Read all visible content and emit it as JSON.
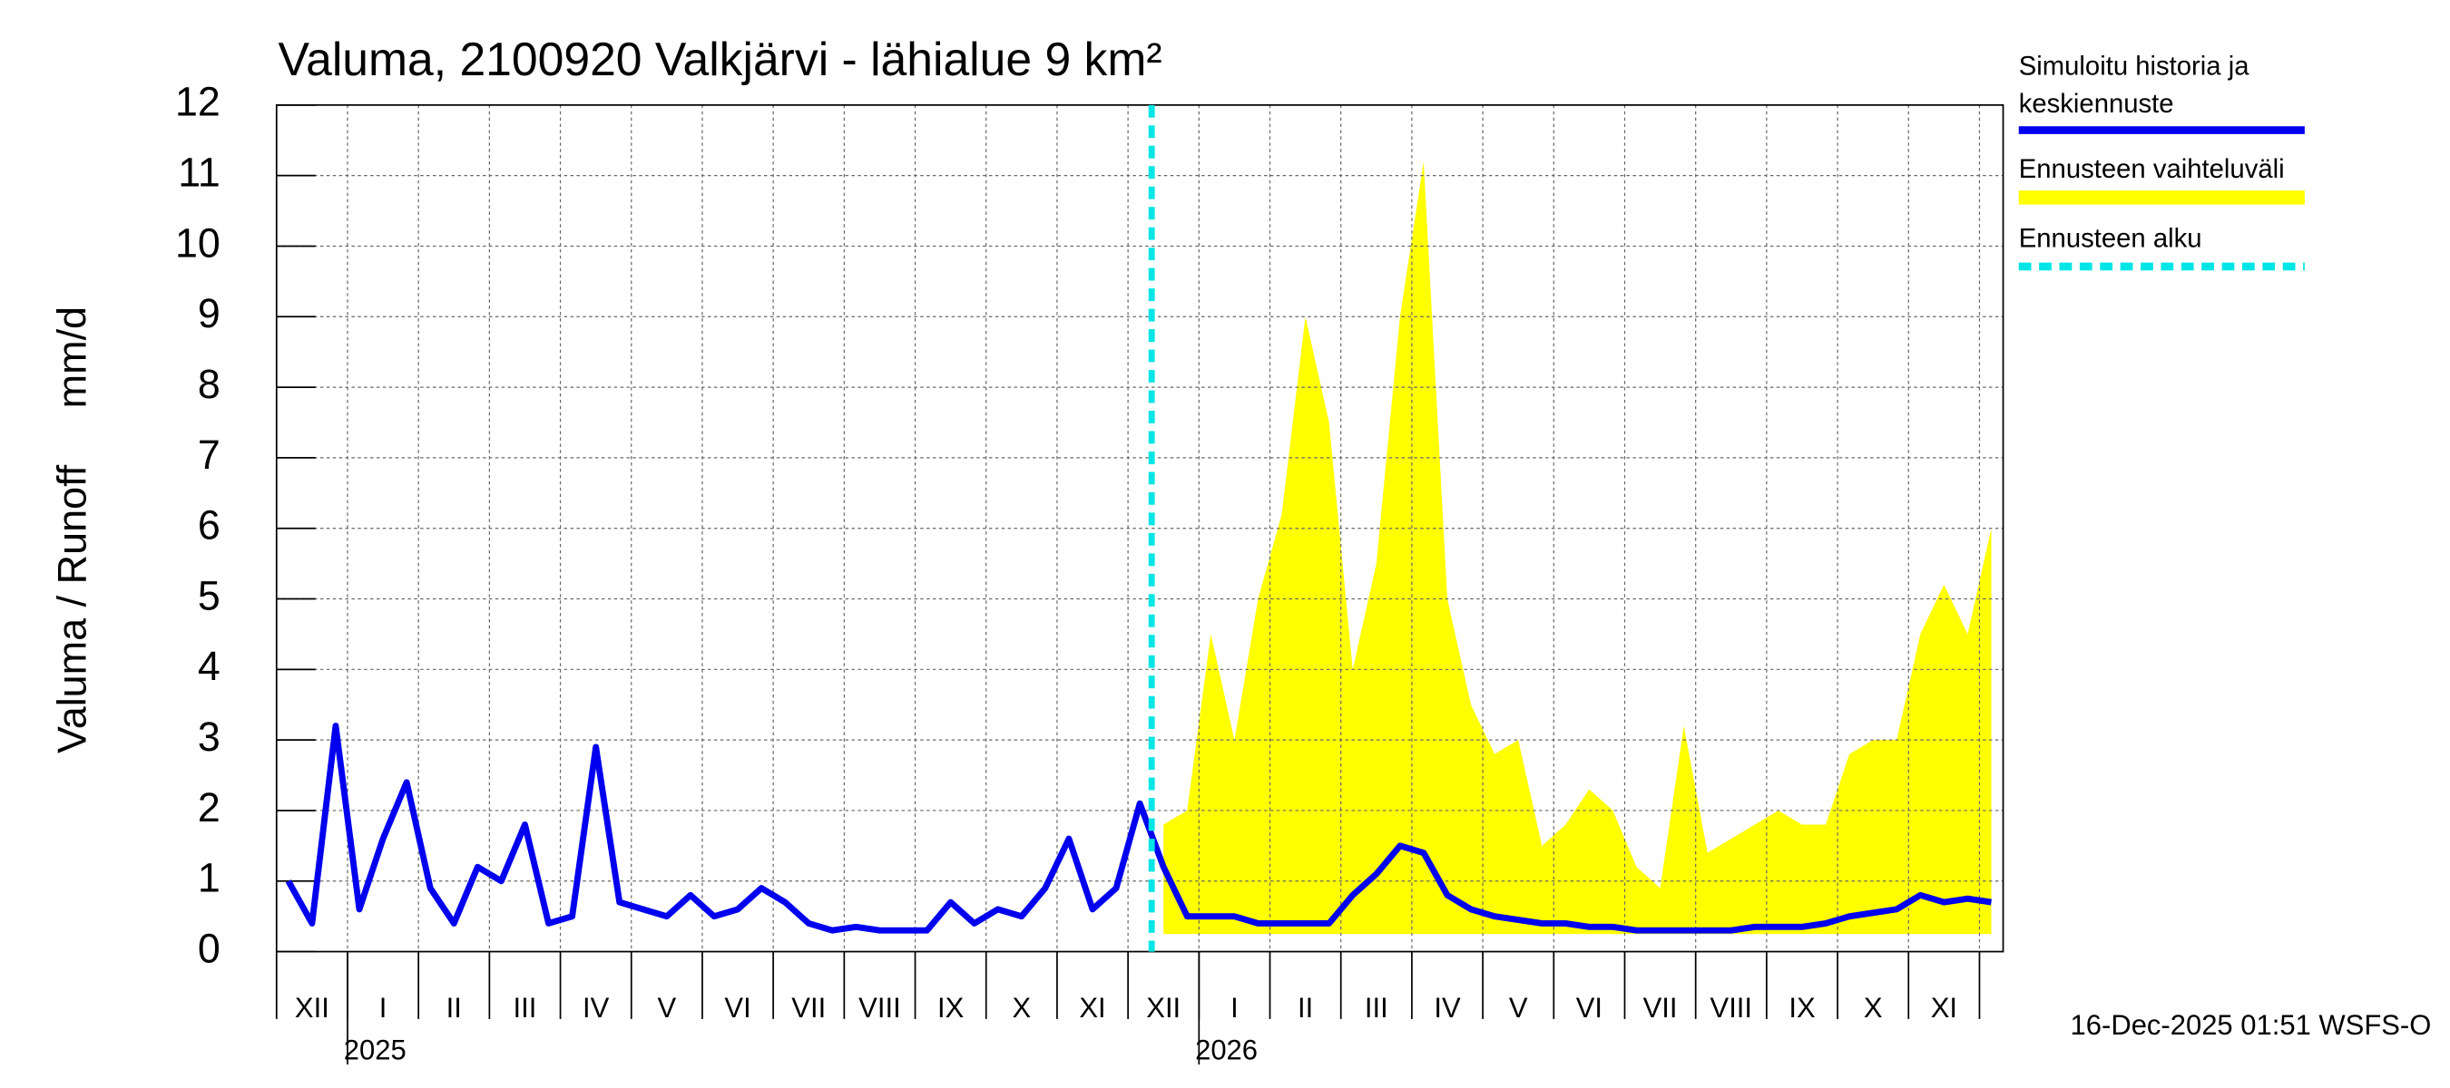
{
  "chart_data": {
    "type": "line",
    "title": "Valuma, 2100920 Valkjärvi - lähialue 9 km²",
    "ylabel": "Valuma / Runoff     mm/d",
    "footer": "16-Dec-2025 01:51 WSFS-O",
    "categories": [
      null,
      "XII",
      null,
      null,
      "I",
      null,
      null,
      "II",
      null,
      null,
      "III",
      null,
      null,
      "IV",
      null,
      null,
      "V",
      null,
      null,
      "VI",
      null,
      null,
      "VII",
      null,
      null,
      "VIII",
      null,
      null,
      "IX",
      null,
      null,
      "X",
      null,
      null,
      "XI",
      null,
      null,
      "XII",
      null,
      null,
      "I",
      null,
      null,
      "II",
      null,
      null,
      "III",
      null,
      null,
      "IV",
      null,
      null,
      "V",
      null,
      null,
      "VI",
      null,
      null,
      "VII",
      null,
      null,
      "VIII",
      null,
      null,
      "IX",
      null,
      null,
      "X",
      null,
      null,
      "XI",
      null,
      null
    ],
    "year_labels": [
      {
        "label": "2025",
        "index": 4
      },
      {
        "label": "2026",
        "index": 40
      }
    ],
    "forecast_start": 37,
    "ylim": [
      0,
      12
    ],
    "yticks": [
      0,
      1,
      2,
      3,
      4,
      5,
      6,
      7,
      8,
      9,
      10,
      11,
      12
    ],
    "grid": true,
    "legend": "right",
    "series": [
      {
        "name": "Simuloitu historia ja keskiennuste",
        "color": "#0000ee",
        "values": [
          1.0,
          0.4,
          3.2,
          0.6,
          1.6,
          2.4,
          0.9,
          0.4,
          1.2,
          1.0,
          1.8,
          0.4,
          0.5,
          2.9,
          0.7,
          0.6,
          0.5,
          0.8,
          0.5,
          0.6,
          0.9,
          0.7,
          0.4,
          0.3,
          0.35,
          0.3,
          0.3,
          0.3,
          0.7,
          0.4,
          0.6,
          0.5,
          0.9,
          1.6,
          0.6,
          0.9,
          2.1,
          1.2,
          0.5,
          0.5,
          0.5,
          0.4,
          0.4,
          0.4,
          0.4,
          0.8,
          1.1,
          1.5,
          1.4,
          0.8,
          0.6,
          0.5,
          0.45,
          0.4,
          0.4,
          0.35,
          0.35,
          0.3,
          0.3,
          0.3,
          0.3,
          0.3,
          0.35,
          0.35,
          0.35,
          0.4,
          0.5,
          0.55,
          0.6,
          0.8,
          0.7,
          0.75,
          0.7
        ]
      },
      {
        "name": "Ennusteen vaihteluväli",
        "color": "#ffff00",
        "type": "band",
        "high": [
          null,
          null,
          null,
          null,
          null,
          null,
          null,
          null,
          null,
          null,
          null,
          null,
          null,
          null,
          null,
          null,
          null,
          null,
          null,
          null,
          null,
          null,
          null,
          null,
          null,
          null,
          null,
          null,
          null,
          null,
          null,
          null,
          null,
          null,
          null,
          null,
          null,
          1.8,
          2.0,
          4.5,
          3.0,
          5.0,
          6.2,
          9.0,
          7.5,
          4.0,
          5.5,
          9.0,
          11.2,
          5.0,
          3.5,
          2.8,
          3.0,
          1.5,
          1.8,
          2.3,
          2.0,
          1.2,
          0.9,
          3.2,
          1.4,
          1.6,
          1.8,
          2.0,
          1.8,
          1.8,
          2.8,
          3.0,
          3.0,
          4.5,
          5.2,
          4.5,
          6.0
        ],
        "low": [
          null,
          null,
          null,
          null,
          null,
          null,
          null,
          null,
          null,
          null,
          null,
          null,
          null,
          null,
          null,
          null,
          null,
          null,
          null,
          null,
          null,
          null,
          null,
          null,
          null,
          null,
          null,
          null,
          null,
          null,
          null,
          null,
          null,
          null,
          null,
          null,
          null,
          0.25,
          0.25,
          0.25,
          0.25,
          0.25,
          0.25,
          0.25,
          0.25,
          0.25,
          0.25,
          0.25,
          0.25,
          0.25,
          0.25,
          0.25,
          0.25,
          0.25,
          0.25,
          0.25,
          0.25,
          0.25,
          0.25,
          0.25,
          0.25,
          0.25,
          0.25,
          0.25,
          0.25,
          0.25,
          0.25,
          0.25,
          0.25,
          0.25,
          0.25,
          0.25,
          0.25
        ]
      },
      {
        "name": "Ennusteen alku",
        "color": "#00e5e5",
        "type": "marker"
      }
    ]
  }
}
